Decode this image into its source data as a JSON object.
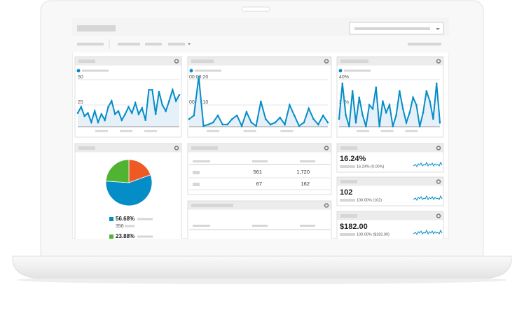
{
  "widgets": [
    {
      "type": "line",
      "color": "#058dc7",
      "ylim": [
        0,
        55.5
      ],
      "yticks": [
        25,
        50
      ],
      "values": [
        17,
        23,
        14,
        17,
        8,
        19,
        8,
        16,
        10,
        23,
        29,
        16,
        19,
        10,
        16,
        23,
        17,
        27,
        16,
        22,
        10,
        40,
        40,
        16,
        38,
        25,
        19,
        29,
        40,
        29,
        35
      ]
    },
    {
      "type": "line",
      "color": "#058dc7",
      "ylim": [
        0,
        555
      ],
      "yticks": [
        {
          "value": 250,
          "label": "00:04:10"
        },
        {
          "value": 500,
          "label": "00:08:20"
        }
      ],
      "values": [
        111,
        146,
        528,
        42,
        56,
        76,
        146,
        56,
        56,
        111,
        146,
        42,
        181,
        76,
        42,
        285,
        111,
        56,
        76,
        125,
        56,
        250,
        146,
        42,
        76,
        215,
        111,
        56,
        146,
        76
      ]
    },
    {
      "type": "line",
      "color": "#058dc7",
      "ylim": [
        0,
        44.4
      ],
      "yticks": [
        {
          "value": 20,
          "label": "20%"
        },
        {
          "value": 40,
          "label": "40%"
        }
      ],
      "values": [
        9,
        37,
        12,
        3,
        31,
        6,
        26,
        12,
        3,
        20,
        17,
        34,
        3,
        23,
        14,
        20,
        3,
        12,
        31,
        17,
        6,
        14,
        26,
        20,
        3,
        14,
        31,
        23,
        9,
        37,
        6
      ]
    }
  ],
  "pie": {
    "type": "pie",
    "values": [
      19.44,
      56.68,
      23.88
    ],
    "colors": [
      "#ef5a24",
      "#058dc7",
      "#50b432"
    ],
    "value_labels": [
      null,
      "56.68%",
      "23.88%"
    ],
    "counts": [
      null,
      356,
      null
    ]
  },
  "table": {
    "rows": [
      [
        "561",
        "1,720"
      ],
      [
        "67",
        "162"
      ]
    ]
  },
  "scorecards": [
    {
      "value": "16.24%",
      "detail": "16.24% (0.00%)"
    },
    {
      "value": "102",
      "detail": "100.00% (102)"
    },
    {
      "value": "$182.00",
      "detail": "100.00% ($182.00)"
    }
  ]
}
